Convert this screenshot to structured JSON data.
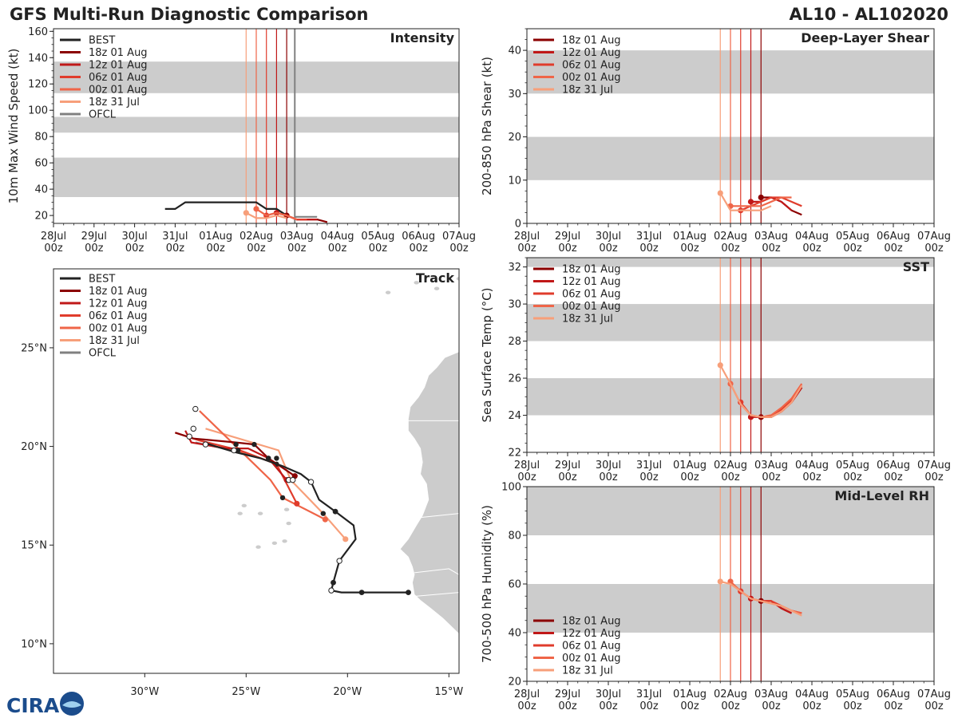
{
  "header": {
    "title": "GFS Multi-Run Diagnostic Comparison",
    "storm_id": "AL10 - AL102020"
  },
  "logo": {
    "text": "CIRA",
    "alt_text": "CSU/CIRA"
  },
  "colors": {
    "best": "#222222",
    "ofcl": "#808080",
    "run_18z_01aug": "#8b0000",
    "run_12z_01aug": "#c01818",
    "run_06z_01aug": "#e03c2c",
    "run_00z_01aug": "#ef6548",
    "run_18z_31jul": "#f79f7a",
    "band": "#cccccc",
    "land": "#cccccc"
  },
  "time_axis": {
    "ticks": [
      "28Jul",
      "29Jul",
      "30Jul",
      "31Jul",
      "01Aug",
      "02Aug",
      "03Aug",
      "04Aug",
      "05Aug",
      "06Aug",
      "07Aug"
    ],
    "sub": "00z",
    "range_days": [
      0,
      10
    ]
  },
  "legend": {
    "best": "BEST",
    "r18z01": "18z 01 Aug",
    "r12z01": "12z 01 Aug",
    "r06z01": "06z 01 Aug",
    "r00z01": "00z 01 Aug",
    "r18z31": "18z 31 Jul",
    "ofcl": "OFCL"
  },
  "chart_data": [
    {
      "type": "line",
      "title": "Intensity",
      "ylabel": "10m Max Wind Speed (kt)",
      "ylim": [
        14,
        162
      ],
      "yticks": [
        20,
        40,
        60,
        80,
        100,
        120,
        140,
        160
      ],
      "bands": [
        [
          34,
          64
        ],
        [
          83,
          95
        ],
        [
          113,
          137
        ]
      ],
      "init_times": [
        4.75,
        5.0,
        5.25,
        5.5,
        5.75
      ],
      "series": [
        {
          "name": "BEST",
          "x": [
            2.75,
            3.0,
            3.25,
            3.5,
            3.75,
            4.0,
            4.25,
            4.5,
            4.75,
            5.0,
            5.25,
            5.5,
            5.75
          ],
          "y": [
            25,
            25,
            30,
            30,
            30,
            30,
            30,
            30,
            30,
            30,
            25,
            25,
            20
          ]
        },
        {
          "name": "18z 01 Aug",
          "x": [
            5.75,
            6.0,
            6.25,
            6.5,
            6.75
          ],
          "y": [
            20,
            17,
            17,
            17,
            15
          ]
        },
        {
          "name": "12z 01 Aug",
          "x": [
            5.5,
            5.75,
            6.0,
            6.25,
            6.5
          ],
          "y": [
            22,
            20,
            17,
            17,
            17
          ]
        },
        {
          "name": "06z 01 Aug",
          "x": [
            5.25,
            5.5,
            5.75,
            6.0,
            6.25
          ],
          "y": [
            20,
            22,
            20,
            17,
            17
          ]
        },
        {
          "name": "00z 01 Aug",
          "x": [
            5.0,
            5.25,
            5.5,
            5.75,
            6.0
          ],
          "y": [
            25,
            20,
            22,
            20,
            17
          ]
        },
        {
          "name": "18z 31 Jul",
          "x": [
            4.75,
            5.0,
            5.25,
            5.5,
            5.75
          ],
          "y": [
            22,
            18,
            18,
            20,
            18
          ]
        },
        {
          "name": "OFCL",
          "x": [
            5.95,
            6.5
          ],
          "y": [
            19,
            19
          ]
        }
      ],
      "ofcl_time": 5.95
    },
    {
      "type": "line",
      "title": "Deep-Layer Shear",
      "ylabel": "200-850 hPa Shear (kt)",
      "ylim": [
        0,
        45
      ],
      "yticks": [
        0,
        10,
        20,
        30,
        40
      ],
      "bands": [
        [
          10,
          20
        ],
        [
          30,
          40
        ]
      ],
      "init_times": [
        4.75,
        5.0,
        5.25,
        5.5,
        5.75
      ],
      "series": [
        {
          "name": "18z 01 Aug",
          "x": [
            5.75,
            6.0,
            6.25,
            6.5,
            6.75
          ],
          "y": [
            6,
            6,
            5,
            3,
            2
          ]
        },
        {
          "name": "12z 01 Aug",
          "x": [
            5.5,
            5.75,
            6.0,
            6.25,
            6.5
          ],
          "y": [
            5,
            5,
            6,
            5,
            3
          ]
        },
        {
          "name": "06z 01 Aug",
          "x": [
            5.25,
            5.5,
            5.75,
            6.0,
            6.25,
            6.5,
            6.75
          ],
          "y": [
            3,
            4,
            5,
            6,
            6,
            5,
            4
          ]
        },
        {
          "name": "00z 01 Aug",
          "x": [
            5.0,
            5.25,
            5.5,
            5.75,
            6.0,
            6.25,
            6.5
          ],
          "y": [
            4,
            4,
            4,
            4,
            5,
            6,
            6
          ]
        },
        {
          "name": "18z 31 Jul",
          "x": [
            4.75,
            5.0,
            5.25,
            5.5,
            5.75,
            6.0
          ],
          "y": [
            7,
            3,
            3,
            3,
            3,
            4
          ]
        }
      ]
    },
    {
      "type": "line",
      "title": "SST",
      "ylabel": "Sea Surface Temp (°C)",
      "ylim": [
        22,
        32.5
      ],
      "yticks": [
        22,
        24,
        26,
        28,
        30,
        32
      ],
      "bands": [
        [
          24,
          26
        ],
        [
          28,
          30
        ],
        [
          32,
          34
        ]
      ],
      "init_times": [
        4.75,
        5.0,
        5.25,
        5.5,
        5.75
      ],
      "series": [
        {
          "name": "18z 01 Aug",
          "x": [
            5.75,
            6.0,
            6.25,
            6.5,
            6.75
          ],
          "y": [
            23.9,
            23.9,
            24.2,
            24.7,
            25.5
          ]
        },
        {
          "name": "12z 01 Aug",
          "x": [
            5.5,
            5.75,
            6.0,
            6.25,
            6.5,
            6.75
          ],
          "y": [
            23.9,
            23.9,
            23.9,
            24.2,
            24.7,
            25.5
          ]
        },
        {
          "name": "06z 01 Aug",
          "x": [
            5.25,
            5.5,
            5.75,
            6.0,
            6.25,
            6.5,
            6.75
          ],
          "y": [
            24.7,
            24.0,
            23.9,
            23.9,
            24.3,
            24.8,
            25.6
          ]
        },
        {
          "name": "00z 01 Aug",
          "x": [
            5.0,
            5.25,
            5.5,
            5.75,
            6.0,
            6.25,
            6.5,
            6.75
          ],
          "y": [
            25.7,
            24.6,
            24.0,
            23.9,
            24.0,
            24.4,
            24.9,
            25.7
          ]
        },
        {
          "name": "18z 31 Jul",
          "x": [
            4.75,
            5.0,
            5.25,
            5.5,
            5.75,
            6.0,
            6.25,
            6.5,
            6.75
          ],
          "y": [
            26.7,
            25.7,
            24.6,
            24.0,
            23.9,
            23.9,
            24.2,
            24.7,
            25.6
          ]
        }
      ]
    },
    {
      "type": "line",
      "title": "Mid-Level RH",
      "ylabel": "700-500 hPa Humidity (%)",
      "ylim": [
        20,
        100
      ],
      "yticks": [
        20,
        40,
        60,
        80,
        100
      ],
      "bands": [
        [
          40,
          60
        ],
        [
          80,
          100
        ]
      ],
      "init_times": [
        4.75,
        5.0,
        5.25,
        5.5,
        5.75
      ],
      "series": [
        {
          "name": "18z 01 Aug",
          "x": [
            5.75,
            6.0,
            6.25,
            6.5
          ],
          "y": [
            53,
            53,
            50,
            48
          ]
        },
        {
          "name": "12z 01 Aug",
          "x": [
            5.5,
            5.75,
            6.0,
            6.25,
            6.5
          ],
          "y": [
            54,
            53,
            53,
            50,
            48
          ]
        },
        {
          "name": "06z 01 Aug",
          "x": [
            5.25,
            5.5,
            5.75,
            6.0,
            6.25,
            6.5,
            6.75
          ],
          "y": [
            57,
            54,
            53,
            53,
            51,
            49,
            48
          ]
        },
        {
          "name": "00z 01 Aug",
          "x": [
            5.0,
            5.25,
            5.5,
            5.75,
            6.0,
            6.25,
            6.5,
            6.75
          ],
          "y": [
            61,
            57,
            54,
            53,
            52,
            51,
            49,
            48
          ]
        },
        {
          "name": "18z 31 Jul",
          "x": [
            4.75,
            5.0,
            5.25,
            5.5,
            5.75,
            6.0,
            6.25,
            6.5,
            6.75
          ],
          "y": [
            61,
            60,
            57,
            54,
            53,
            52,
            51,
            49,
            47
          ]
        }
      ]
    },
    {
      "type": "scatter",
      "title": "Track",
      "xlim": [
        -34.5,
        -14.5
      ],
      "ylim": [
        8.5,
        29
      ],
      "xticks": [
        -30,
        -25,
        -20,
        -15
      ],
      "xticklabels": [
        "30°W",
        "25°W",
        "20°W",
        "15°W"
      ],
      "yticks": [
        10,
        15,
        20,
        25
      ],
      "yticklabels": [
        "10°N",
        "15°N",
        "20°N",
        "25°N"
      ],
      "series": [
        {
          "name": "BEST",
          "lon": [
            -17.0,
            -19.3,
            -20.3,
            -20.8,
            -20.7,
            -20.4,
            -19.6,
            -19.7,
            -20.6,
            -21.4,
            -21.8,
            -22.3,
            -23.2,
            -24.3,
            -25.5,
            -26.5,
            -27.1
          ],
          "lat": [
            12.6,
            12.6,
            12.6,
            12.7,
            13.1,
            14.2,
            15.3,
            16.0,
            16.7,
            17.3,
            18.2,
            18.6,
            19.0,
            19.4,
            19.7,
            20.0,
            20.2
          ],
          "filled": [
            true,
            true,
            false,
            false,
            true,
            false,
            false,
            false,
            true,
            false,
            false,
            false,
            false,
            false,
            false,
            false,
            false
          ]
        },
        {
          "name": "18z 01 Aug",
          "lon": [
            -22.6,
            -23.9,
            -24.6,
            -25.5,
            -27.6,
            -28.5
          ],
          "lat": [
            18.5,
            19.4,
            20.1,
            20.2,
            20.4,
            20.7
          ]
        },
        {
          "name": "12z 01 Aug",
          "lon": [
            -23.0,
            -23.9,
            -24.9,
            -26.0,
            -27.7,
            -28.0
          ],
          "lat": [
            18.3,
            19.4,
            19.9,
            19.9,
            20.2,
            20.8
          ]
        },
        {
          "name": "06z 01 Aug",
          "lon": [
            -22.5,
            -23.5,
            -25.3,
            -27.3,
            -28.5
          ],
          "lat": [
            17.1,
            19.1,
            19.8,
            20.3,
            20.7
          ]
        },
        {
          "name": "00z 01 Aug",
          "lon": [
            -21.1,
            -23.2,
            -23.8,
            -24.6,
            -27.3
          ],
          "lat": [
            16.3,
            17.4,
            18.3,
            19.1,
            21.8
          ]
        },
        {
          "name": "18z 31 Jul",
          "lon": [
            -20.1,
            -21.2,
            -22.8,
            -23.4,
            -27.0
          ],
          "lat": [
            15.3,
            16.6,
            18.3,
            19.8,
            20.9
          ]
        },
        {
          "name": "OFCL",
          "lon": [
            -24.5,
            -25.6,
            -27.5
          ],
          "lat": [
            19.5,
            19.8,
            20.2
          ]
        }
      ],
      "ofcl_open_points": {
        "lon": [
          -22.9,
          -22.7,
          -25.6,
          -27.0,
          -27.8,
          -27.6
        ],
        "lat": [
          18.3,
          18.3,
          19.8,
          20.1,
          20.5,
          20.9
        ]
      },
      "ref_open_points": {
        "lon": [
          -27.5
        ],
        "lat": [
          21.9
        ]
      }
    }
  ]
}
